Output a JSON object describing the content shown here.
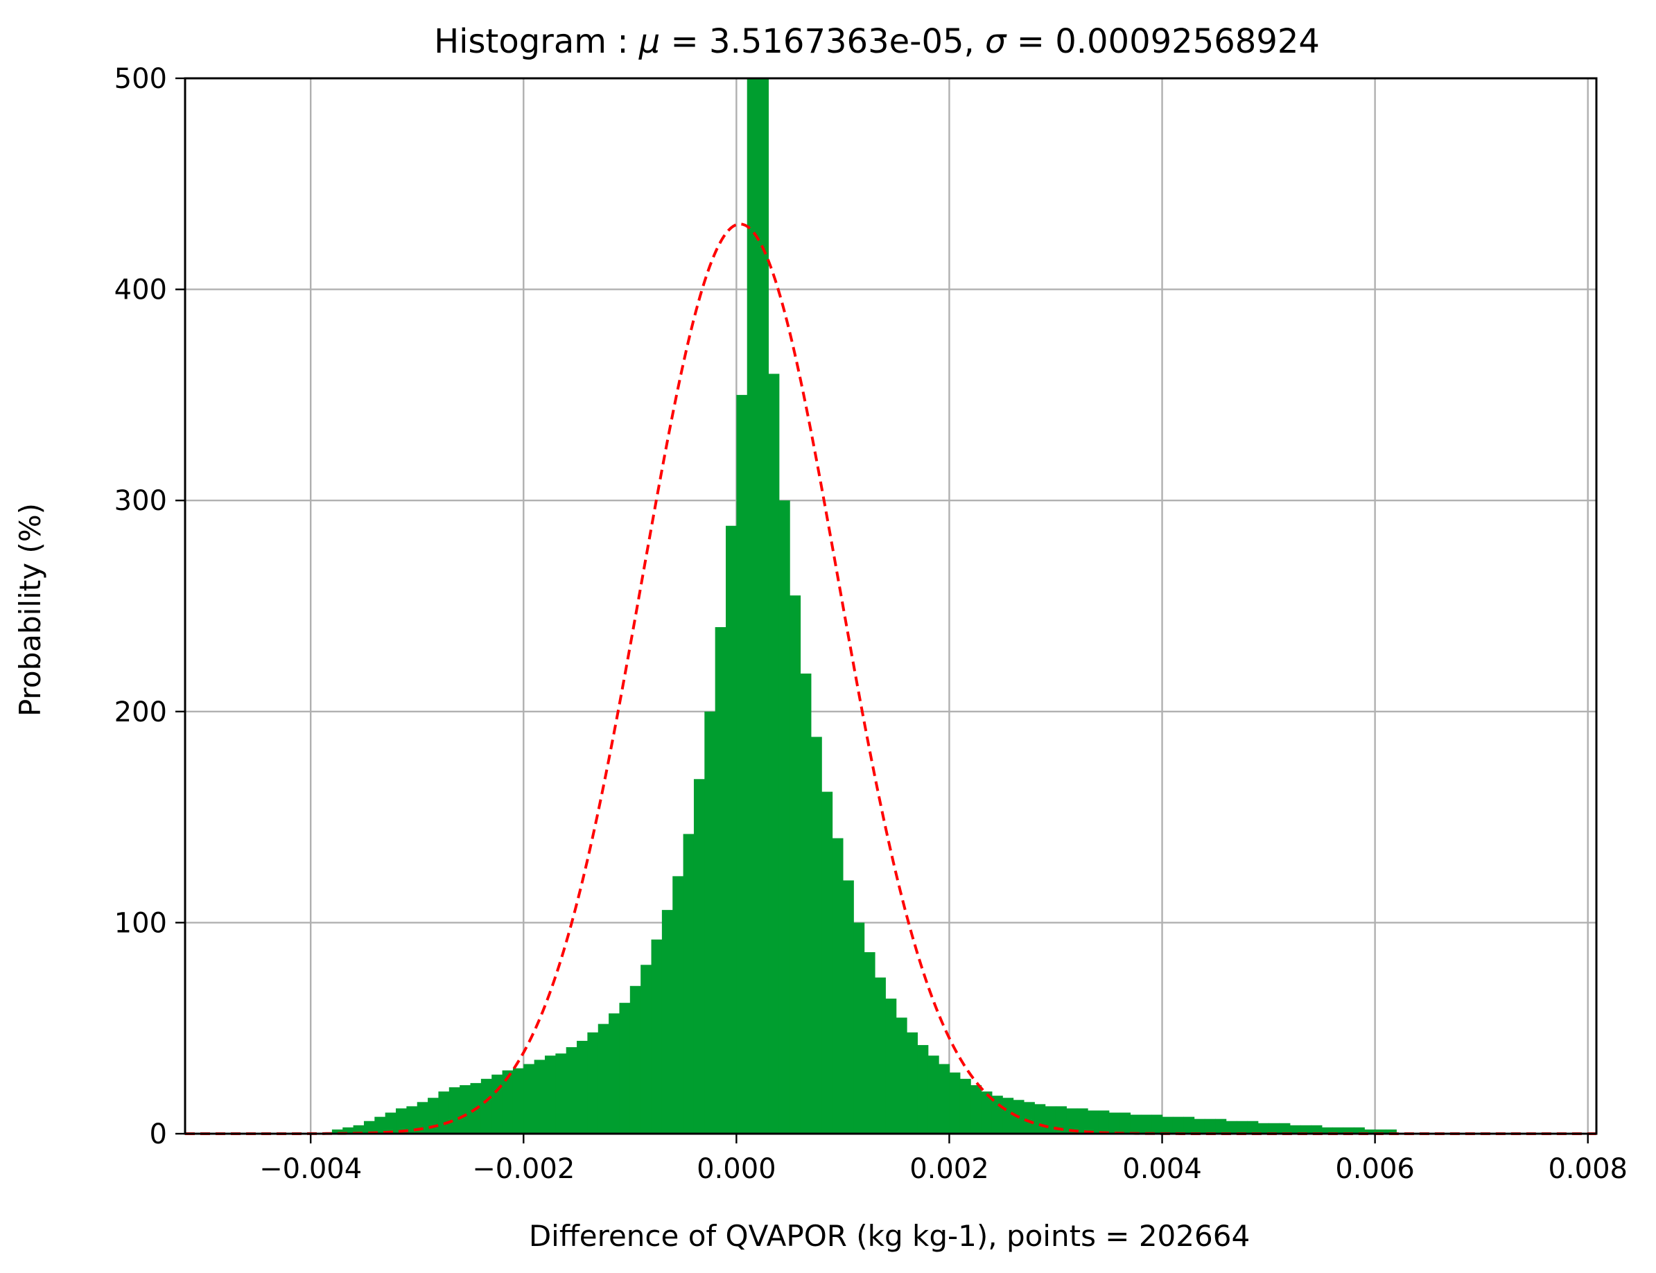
{
  "chart_data": {
    "type": "bar",
    "title_prefix": "Histogram : ",
    "title_mu": "μ",
    "title_eq1": " = 3.5167363e-05, ",
    "title_sigma": "σ",
    "title_eq2": " = 0.00092568924",
    "xlabel": "Difference of QVAPOR (kg kg-1), points = 202664",
    "ylabel": "Probability (%)",
    "xlim": [
      -0.00518,
      0.00808
    ],
    "ylim": [
      0,
      500
    ],
    "xticks": [
      -0.004,
      -0.002,
      0.0,
      0.002,
      0.004,
      0.006,
      0.008
    ],
    "xtick_labels": [
      "−0.004",
      "−0.002",
      "0.000",
      "0.002",
      "0.004",
      "0.006",
      "0.008"
    ],
    "yticks": [
      0,
      100,
      200,
      300,
      400,
      500
    ],
    "ytick_labels": [
      "0",
      "100",
      "200",
      "300",
      "400",
      "500"
    ],
    "grid": true,
    "bin_width": 0.0001,
    "bin_edges_start": -0.0038,
    "histogram_values": [
      2,
      3,
      4,
      6,
      8,
      10,
      12,
      13,
      15,
      17,
      20,
      22,
      23,
      24,
      26,
      28,
      30,
      31,
      33,
      35,
      37,
      38,
      41,
      44,
      48,
      52,
      57,
      62,
      70,
      80,
      92,
      106,
      122,
      142,
      168,
      200,
      240,
      288,
      350,
      500,
      500,
      360,
      300,
      255,
      218,
      188,
      162,
      140,
      120,
      100,
      86,
      74,
      64,
      55,
      48,
      42,
      37,
      33,
      29,
      26,
      23,
      20,
      18,
      17,
      16,
      15,
      14,
      13,
      13,
      12,
      12,
      11,
      11,
      10,
      10,
      9,
      9,
      9,
      8,
      8,
      8,
      7,
      7,
      7,
      6,
      6,
      6,
      5,
      5,
      5,
      4,
      4,
      4,
      3,
      3,
      3,
      3,
      2,
      2,
      2
    ],
    "histogram_color": "#009E2F",
    "normal_fit": {
      "mu": 3.5167363e-05,
      "sigma": 0.00092568924,
      "color": "#FF0000",
      "linestyle": "dashed"
    }
  }
}
